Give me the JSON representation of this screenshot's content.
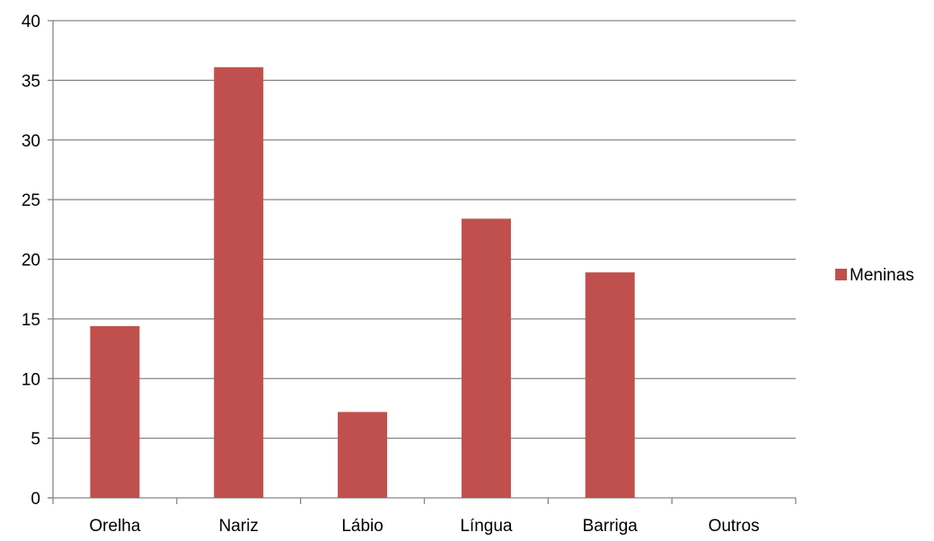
{
  "chart_data": {
    "type": "bar",
    "categories": [
      "Orelha",
      "Nariz",
      "Lábio",
      "Língua",
      "Barriga",
      "Outros"
    ],
    "series": [
      {
        "name": "Meninas",
        "color": "#c0504d",
        "values": [
          14.4,
          36.1,
          7.2,
          23.4,
          18.9,
          0
        ]
      }
    ],
    "ylim": [
      0,
      40
    ],
    "yticks": [
      0,
      5,
      10,
      15,
      20,
      25,
      30,
      35,
      40
    ],
    "grid": true,
    "legend_position": "right",
    "title": "",
    "xlabel": "",
    "ylabel": ""
  }
}
